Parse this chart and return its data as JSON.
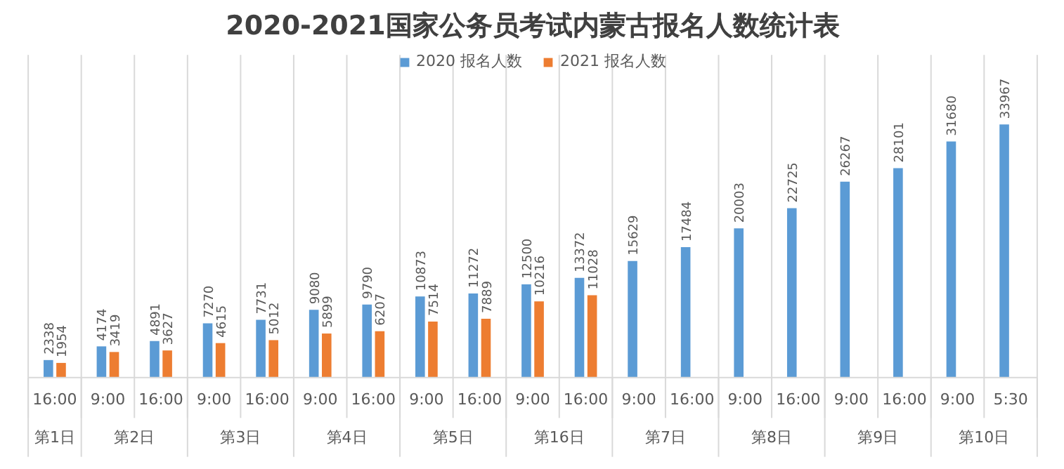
{
  "chart_data": {
    "type": "bar",
    "title": "2020-2021国家公务员考试内蒙古报名人数统计表",
    "categories": [
      "16:00",
      "9:00",
      "16:00",
      "9:00",
      "16:00",
      "9:00",
      "16:00",
      "9:00",
      "16:00",
      "9:00",
      "16:00",
      "9:00",
      "16:00",
      "9:00",
      "16:00",
      "9:00",
      "16:00",
      "9:00",
      "5:30"
    ],
    "series": [
      {
        "name": "2020 报名人数",
        "color": "#5b9bd5",
        "values": [
          2338,
          4174,
          4891,
          7270,
          7731,
          9080,
          9790,
          10873,
          11272,
          12500,
          13372,
          15629,
          17484,
          20003,
          22725,
          26267,
          28101,
          31680,
          33967
        ]
      },
      {
        "name": "2021 报名人数",
        "color": "#ed7d31",
        "values": [
          1954,
          3419,
          3627,
          4615,
          5012,
          5899,
          6207,
          7514,
          7889,
          10216,
          11028,
          null,
          null,
          null,
          null,
          null,
          null,
          null,
          null
        ]
      }
    ],
    "annotations": [
      "第1日",
      "第2日",
      "第3日",
      "第4日",
      "第5日",
      "第16日",
      "第7日",
      "第8日",
      "第9日",
      "第10日"
    ],
    "data_labels": true,
    "grid": "x",
    "legend": "top"
  }
}
